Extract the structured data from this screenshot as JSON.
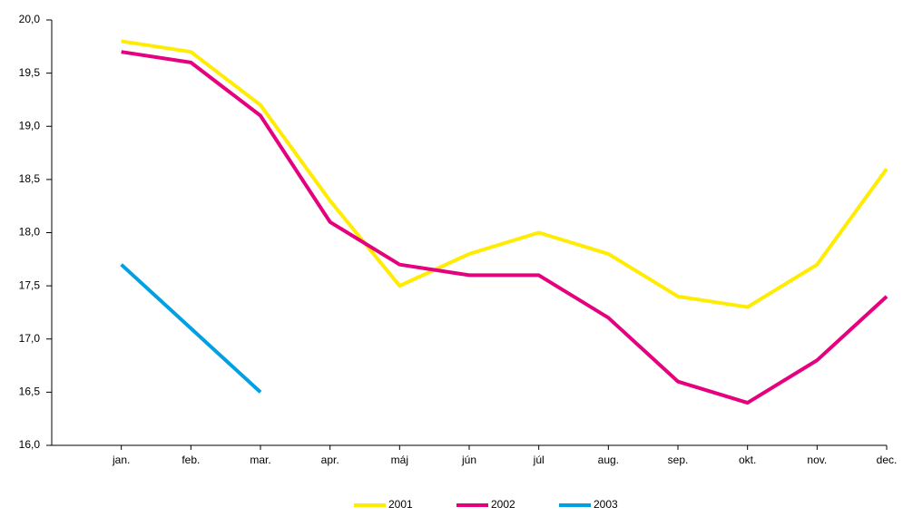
{
  "chart_data": {
    "type": "line",
    "categories": [
      "jan.",
      "feb.",
      "mar.",
      "apr.",
      "máj",
      "jún",
      "júl",
      "aug.",
      "sep.",
      "okt.",
      "nov.",
      "dec."
    ],
    "series": [
      {
        "name": "2001",
        "color": "#ffec00",
        "values": [
          19.8,
          19.7,
          19.2,
          18.3,
          17.5,
          17.8,
          18.0,
          17.8,
          17.4,
          17.3,
          17.7,
          18.6
        ]
      },
      {
        "name": "2002",
        "color": "#e5007e",
        "values": [
          19.7,
          19.6,
          19.1,
          18.1,
          17.7,
          17.6,
          17.6,
          17.2,
          16.6,
          16.4,
          16.8,
          17.4
        ]
      },
      {
        "name": "2003",
        "color": "#00a0e3",
        "values": [
          17.7,
          17.1,
          16.5,
          null,
          null,
          null,
          null,
          null,
          null,
          null,
          null,
          null
        ]
      }
    ],
    "ylim": [
      16.0,
      20.0
    ],
    "yticks": [
      {
        "value": 16.0,
        "label": "16,0"
      },
      {
        "value": 16.5,
        "label": "16,5"
      },
      {
        "value": 17.0,
        "label": "17,0"
      },
      {
        "value": 17.5,
        "label": "17,5"
      },
      {
        "value": 18.0,
        "label": "18,0"
      },
      {
        "value": 18.5,
        "label": "18,5"
      },
      {
        "value": 19.0,
        "label": "19,0"
      },
      {
        "value": 19.5,
        "label": "19,5"
      },
      {
        "value": 20.0,
        "label": "20,0"
      }
    ],
    "legend": "bottom"
  }
}
